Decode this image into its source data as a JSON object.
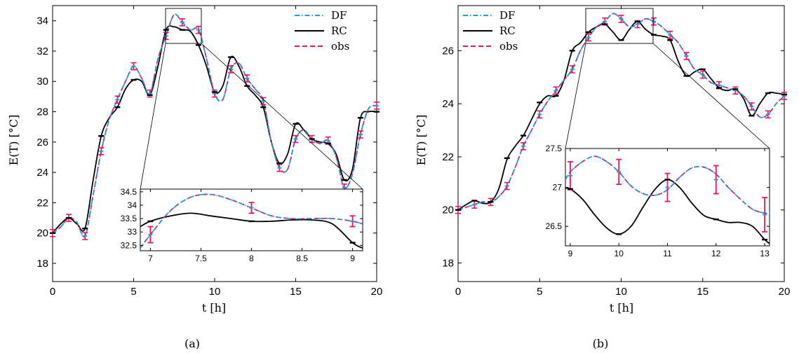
{
  "chart_data": [
    {
      "type": "line",
      "panel_label": "(a)",
      "xlabel": "t [h]",
      "ylabel": "E(T) [°C]",
      "xlim": [
        0,
        20
      ],
      "ylim": [
        16.8,
        35
      ],
      "xticks": [
        "0",
        "5",
        "10",
        "15",
        "20"
      ],
      "yticks": [
        "18",
        "20",
        "22",
        "24",
        "26",
        "28",
        "30",
        "32",
        "34"
      ],
      "legend": {
        "placement": "top-right",
        "entries": [
          "DF",
          "RC",
          "obs"
        ]
      },
      "series": [
        {
          "name": "DF",
          "color": "#1f9fd8",
          "style": "dash-dot",
          "x": [
            0,
            0.5,
            1,
            1.5,
            2,
            2.5,
            3,
            3.5,
            4,
            4.5,
            5,
            5.5,
            6,
            6.5,
            7,
            7.5,
            8,
            8.5,
            9,
            9.5,
            10,
            10.5,
            11,
            11.5,
            12,
            12.5,
            13,
            13.5,
            14,
            14.5,
            15,
            15.5,
            16,
            16.5,
            17,
            17.5,
            18,
            18.5,
            19,
            19.5,
            20
          ],
          "y": [
            20,
            20.4,
            21,
            20.7,
            19.8,
            22.5,
            25.4,
            27.5,
            28.8,
            30,
            31,
            30.2,
            29.2,
            31.5,
            33,
            34.4,
            33.9,
            33.4,
            33.4,
            31.5,
            29.2,
            28.8,
            30.8,
            31.2,
            30.2,
            29.5,
            28.7,
            26,
            24.3,
            24.2,
            26.2,
            26.8,
            26.2,
            25.9,
            26.1,
            25,
            23,
            23.9,
            26.5,
            28.2,
            28.4
          ]
        },
        {
          "name": "RC",
          "color": "#000000",
          "style": "solid",
          "x": [
            0,
            0.5,
            1,
            1.5,
            2,
            2.5,
            3,
            3.5,
            4,
            4.5,
            5,
            5.5,
            6,
            6.5,
            7,
            7.5,
            8,
            8.5,
            9,
            9.5,
            10,
            10.5,
            11,
            11.5,
            12,
            12.5,
            13,
            13.5,
            14,
            14.5,
            15,
            15.5,
            16,
            16.5,
            17,
            17.5,
            18,
            18.5,
            19,
            19.5,
            20
          ],
          "y": [
            20,
            20.6,
            21,
            20.6,
            20.3,
            23.5,
            26.4,
            27.6,
            28.3,
            29.5,
            30.1,
            30,
            29.1,
            31,
            33.4,
            33.6,
            33.4,
            33.3,
            32.4,
            31,
            29.3,
            29.7,
            31.6,
            31,
            29.7,
            29.1,
            28.3,
            26,
            24.6,
            25.2,
            27.2,
            26.8,
            26.2,
            26,
            25.9,
            25.2,
            23.5,
            24.2,
            27.6,
            28,
            28
          ]
        },
        {
          "name": "obs",
          "color": "#e8175d",
          "style": "dashed",
          "x": [
            0,
            0.5,
            1,
            1.5,
            2,
            2.5,
            3,
            3.5,
            4,
            4.5,
            5,
            5.5,
            6,
            6.5,
            7,
            7.5,
            8,
            8.5,
            9,
            9.5,
            10,
            10.5,
            11,
            11.5,
            12,
            12.5,
            13,
            13.5,
            14,
            14.5,
            15,
            15.5,
            16,
            16.5,
            17,
            17.5,
            18,
            18.5,
            19,
            19.5,
            20
          ],
          "y": [
            20,
            20.4,
            21,
            20.7,
            19.8,
            22.5,
            25.4,
            27.5,
            28.8,
            30,
            31,
            30.2,
            29.2,
            31.5,
            33,
            34.4,
            33.9,
            33.4,
            33.4,
            31.5,
            29.2,
            28.8,
            30.8,
            31.2,
            30.2,
            29.5,
            28.7,
            26,
            24.3,
            24.2,
            26.2,
            26.8,
            26.2,
            25.9,
            26.1,
            25,
            23,
            23.9,
            26.5,
            28.2,
            28.4
          ]
        }
      ],
      "obs_points": {
        "x": [
          0,
          1,
          2,
          3,
          4,
          5,
          6,
          7,
          8,
          9,
          10,
          11,
          12,
          13,
          14,
          15,
          16,
          17,
          18,
          19,
          20
        ],
        "y": [
          20,
          21,
          19.8,
          25.4,
          28.8,
          31,
          29.2,
          33,
          33.9,
          33.4,
          29.2,
          30.8,
          30.2,
          28.7,
          24.3,
          26.2,
          26.2,
          26.1,
          23,
          26.5,
          28.4
        ]
      },
      "rc_points": {
        "x": [
          0,
          1,
          2,
          3,
          4,
          5,
          6,
          7,
          8,
          9,
          10,
          11,
          12,
          13,
          14,
          15,
          16,
          17,
          18,
          19,
          20
        ],
        "y": [
          20,
          21,
          20.3,
          26.4,
          28.3,
          30.1,
          29.1,
          33.4,
          33.4,
          32.4,
          29.3,
          31.6,
          29.7,
          28.3,
          24.6,
          27.2,
          26.2,
          25.9,
          23.5,
          27.6,
          28
        ]
      },
      "inset": {
        "xlim": [
          6.9,
          9.1
        ],
        "ylim": [
          32.3,
          34.6
        ],
        "xticks": [
          "7",
          "7.5",
          "8",
          "8.5",
          "9"
        ],
        "yticks": [
          "32.5",
          "33",
          "33.5",
          "34",
          "34.5"
        ],
        "df_x": [
          6.9,
          7.0,
          7.2,
          7.4,
          7.6,
          7.8,
          8.0,
          8.2,
          8.4,
          8.6,
          8.8,
          9.0,
          9.1
        ],
        "df_y": [
          32.4,
          32.9,
          33.8,
          34.3,
          34.4,
          34.2,
          33.9,
          33.6,
          33.5,
          33.5,
          33.5,
          33.4,
          33.3
        ],
        "rc_x": [
          6.9,
          7.0,
          7.2,
          7.4,
          7.6,
          7.8,
          8.0,
          8.2,
          8.4,
          8.6,
          8.8,
          9.0,
          9.1
        ],
        "rc_y": [
          33.2,
          33.4,
          33.6,
          33.7,
          33.6,
          33.5,
          33.4,
          33.4,
          33.45,
          33.45,
          33.3,
          32.6,
          32.4
        ],
        "obs_x": [
          7,
          8,
          9
        ],
        "obs_y": [
          32.9,
          33.9,
          33.4
        ],
        "obs_err": [
          0.3,
          0.2,
          0.2
        ],
        "rc_px": [
          7,
          8,
          9
        ],
        "rc_py": [
          33.4,
          33.4,
          32.6
        ]
      }
    },
    {
      "type": "line",
      "panel_label": "(b)",
      "xlabel": "t [h]",
      "ylabel": "E(T) [°C]",
      "xlim": [
        0,
        20
      ],
      "ylim": [
        17.3,
        27.7
      ],
      "xticks": [
        "0",
        "5",
        "10",
        "15",
        "20"
      ],
      "yticks": [
        "18",
        "20",
        "22",
        "24",
        "26"
      ],
      "legend": {
        "placement": "top-left",
        "entries": [
          "DF",
          "RC",
          "obs"
        ]
      },
      "series": [
        {
          "name": "DF",
          "color": "#1f9fd8",
          "style": "dash-dot",
          "x": [
            0,
            0.5,
            1,
            1.5,
            2,
            2.5,
            3,
            3.5,
            4,
            4.5,
            5,
            5.5,
            6,
            6.5,
            7,
            7.5,
            8,
            8.5,
            9,
            9.5,
            10,
            10.5,
            11,
            11.5,
            12,
            12.5,
            13,
            13.5,
            14,
            14.5,
            15,
            15.5,
            16,
            16.5,
            17,
            17.5,
            18,
            18.5,
            19,
            19.5,
            20
          ],
          "y": [
            20,
            20.1,
            20.2,
            20.3,
            20.3,
            20.5,
            20.9,
            21.6,
            22.4,
            23,
            23.6,
            24.1,
            24.5,
            24.9,
            25.3,
            26,
            26.5,
            26.9,
            27.1,
            27.4,
            27.2,
            26.9,
            27.0,
            27.2,
            27.1,
            26.9,
            26.6,
            26.3,
            25.8,
            25.3,
            25.1,
            24.8,
            24.7,
            24.6,
            24.5,
            24.3,
            23.9,
            23.5,
            23.6,
            24.0,
            24.3
          ]
        },
        {
          "name": "RC",
          "color": "#000000",
          "style": "solid",
          "x": [
            0,
            0.5,
            1,
            1.5,
            2,
            2.5,
            3,
            3.5,
            4,
            4.5,
            5,
            5.5,
            6,
            6.5,
            7,
            7.5,
            8,
            8.5,
            9,
            9.5,
            10,
            10.5,
            11,
            11.5,
            12,
            12.5,
            13,
            13.5,
            14,
            14.5,
            15,
            15.5,
            16,
            16.5,
            17,
            17.5,
            18,
            18.5,
            19,
            19.5,
            20
          ],
          "y": [
            20,
            20.2,
            20.35,
            20.25,
            20.3,
            20.8,
            21.9,
            22.4,
            22.8,
            23.4,
            24.0,
            24.3,
            24.3,
            24.9,
            26.0,
            26.3,
            26.7,
            26.9,
            27.0,
            26.7,
            26.4,
            26.8,
            27.1,
            26.8,
            26.6,
            26.55,
            26.4,
            25.6,
            25.05,
            25.2,
            25.3,
            24.95,
            24.6,
            24.5,
            24.55,
            24.2,
            23.55,
            24.0,
            24.4,
            24.4,
            24.35
          ]
        },
        {
          "name": "obs",
          "color": "#e8175d",
          "style": "dashed",
          "x": [
            0,
            0.5,
            1,
            1.5,
            2,
            2.5,
            3,
            3.5,
            4,
            4.5,
            5,
            5.5,
            6,
            6.5,
            7,
            7.5,
            8,
            8.5,
            9,
            9.5,
            10,
            10.5,
            11,
            11.5,
            12,
            12.5,
            13,
            13.5,
            14,
            14.5,
            15,
            15.5,
            16,
            16.5,
            17,
            17.5,
            18,
            18.5,
            19,
            19.5,
            20
          ],
          "y": [
            20,
            20.1,
            20.2,
            20.3,
            20.3,
            20.5,
            20.9,
            21.6,
            22.4,
            23,
            23.6,
            24.1,
            24.5,
            24.9,
            25.3,
            26,
            26.5,
            26.9,
            27.1,
            27.4,
            27.2,
            26.9,
            27.0,
            27.2,
            27.1,
            26.9,
            26.6,
            26.3,
            25.8,
            25.3,
            25.1,
            24.8,
            24.7,
            24.6,
            24.5,
            24.3,
            23.9,
            23.5,
            23.6,
            24.0,
            24.3
          ]
        }
      ],
      "obs_points": {
        "x": [
          0,
          1,
          2,
          3,
          4,
          5,
          6,
          7,
          8,
          9,
          10,
          11,
          12,
          13,
          14,
          15,
          16,
          17,
          18,
          19,
          20
        ],
        "y": [
          20,
          20.2,
          20.3,
          20.9,
          22.4,
          23.6,
          24.5,
          25.3,
          26.5,
          27.1,
          27.2,
          27.0,
          27.1,
          26.6,
          25.8,
          25.1,
          24.7,
          24.5,
          23.9,
          23.6,
          24.3
        ]
      },
      "rc_points": {
        "x": [
          0,
          1,
          2,
          3,
          4,
          5,
          6,
          7,
          8,
          9,
          10,
          11,
          12,
          13,
          14,
          15,
          16,
          17,
          18,
          19,
          20
        ],
        "y": [
          20,
          20.35,
          20.3,
          21.95,
          22.8,
          24.05,
          24.3,
          26.0,
          26.7,
          27.0,
          26.4,
          27.1,
          26.6,
          26.4,
          25.05,
          25.3,
          24.6,
          24.55,
          23.55,
          24.4,
          24.35
        ]
      },
      "inset": {
        "xlim": [
          8.9,
          13.1
        ],
        "ylim": [
          26.25,
          27.5
        ],
        "xticks": [
          "9",
          "10",
          "11",
          "12",
          "13"
        ],
        "yticks": [
          "26.5",
          "27",
          "27.5"
        ],
        "df_x": [
          8.9,
          9.0,
          9.25,
          9.5,
          9.75,
          10.0,
          10.25,
          10.5,
          10.75,
          11.0,
          11.25,
          11.5,
          11.75,
          12.0,
          12.25,
          12.5,
          12.75,
          13.0,
          13.1
        ],
        "df_y": [
          27.1,
          27.2,
          27.33,
          27.4,
          27.33,
          27.2,
          27.02,
          26.92,
          26.9,
          26.97,
          27.13,
          27.25,
          27.26,
          27.17,
          27.0,
          26.85,
          26.72,
          26.67,
          26.67
        ],
        "rc_x": [
          8.9,
          9.0,
          9.25,
          9.5,
          9.75,
          10.0,
          10.25,
          10.5,
          10.75,
          11.0,
          11.25,
          11.5,
          11.75,
          12.0,
          12.25,
          12.5,
          12.75,
          13.0,
          13.1
        ],
        "rc_y": [
          26.99,
          26.98,
          26.85,
          26.65,
          26.48,
          26.4,
          26.5,
          26.75,
          26.98,
          27.1,
          27.0,
          26.8,
          26.64,
          26.59,
          26.55,
          26.55,
          26.5,
          26.33,
          26.28
        ],
        "obs_x": [
          9,
          10,
          11,
          12,
          13
        ],
        "obs_y": [
          27.15,
          27.2,
          27.0,
          27.1,
          26.65
        ],
        "obs_err": [
          0.18,
          0.16,
          0.18,
          0.18,
          0.22
        ],
        "rc_px": [
          9,
          10,
          11,
          12,
          13
        ],
        "rc_py": [
          26.98,
          26.4,
          27.1,
          26.59,
          26.33
        ]
      }
    }
  ]
}
